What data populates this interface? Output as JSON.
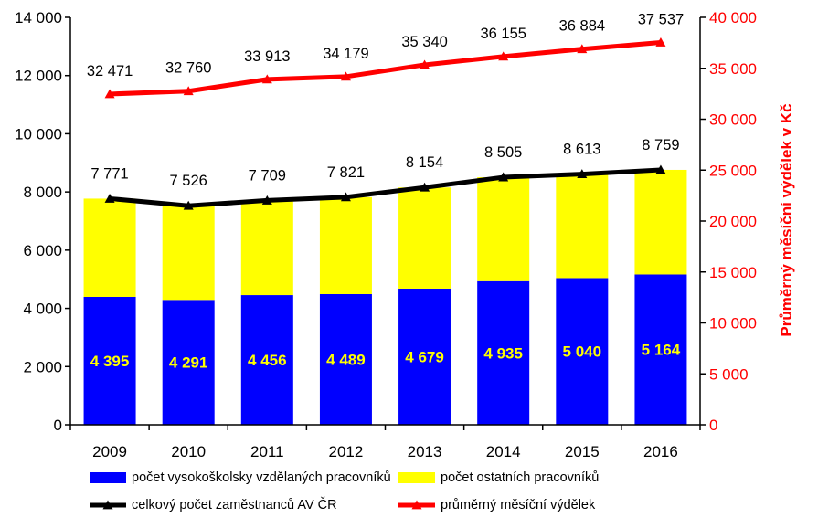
{
  "chart_data": {
    "type": "bar",
    "categories": [
      "2009",
      "2010",
      "2011",
      "2012",
      "2013",
      "2014",
      "2015",
      "2016"
    ],
    "series": [
      {
        "name": "počet vysokoškolsky vzdělaných pracovníků",
        "kind": "bar",
        "axis": "left",
        "color": "#0000ff",
        "values": [
          4395,
          4291,
          4456,
          4489,
          4679,
          4935,
          5040,
          5164
        ],
        "labels": [
          "4 395",
          "4 291",
          "4 456",
          "4 489",
          "4 679",
          "4 935",
          "5 040",
          "5 164"
        ]
      },
      {
        "name": "počet ostatních pracovníků",
        "kind": "bar",
        "axis": "left",
        "color": "#ffff00",
        "values": [
          3376,
          3235,
          3253,
          3332,
          3475,
          3570,
          3573,
          3595
        ]
      },
      {
        "name": "celkový počet zaměstnanců AV ČR",
        "kind": "line",
        "axis": "left",
        "color": "#000000",
        "values": [
          7771,
          7526,
          7709,
          7821,
          8154,
          8505,
          8613,
          8759
        ],
        "labels": [
          "7 771",
          "7 526",
          "7 709",
          "7 821",
          "8 154",
          "8 505",
          "8 613",
          "8 759"
        ]
      },
      {
        "name": "průměrný měsíční výdělek",
        "kind": "line",
        "axis": "right",
        "color": "#ff0000",
        "values": [
          32471,
          32760,
          33913,
          34179,
          35340,
          36155,
          36884,
          37537
        ],
        "labels": [
          "32 471",
          "32 760",
          "33 913",
          "34 179",
          "35 340",
          "36 155",
          "36 884",
          "37 537"
        ]
      }
    ],
    "ylim": [
      0,
      14000
    ],
    "yticks": [
      "0",
      "2 000",
      "4 000",
      "6 000",
      "8 000",
      "10 000",
      "12 000",
      "14 000"
    ],
    "y2lim": [
      0,
      40000
    ],
    "y2ticks": [
      "0",
      "5 000",
      "10 000",
      "15 000",
      "20 000",
      "25 000",
      "30 000",
      "35 000",
      "40 000"
    ],
    "y2label": "Průměrný měsíční výdělek v Kč",
    "y2color": "#ff0000",
    "legend_position": "bottom"
  }
}
